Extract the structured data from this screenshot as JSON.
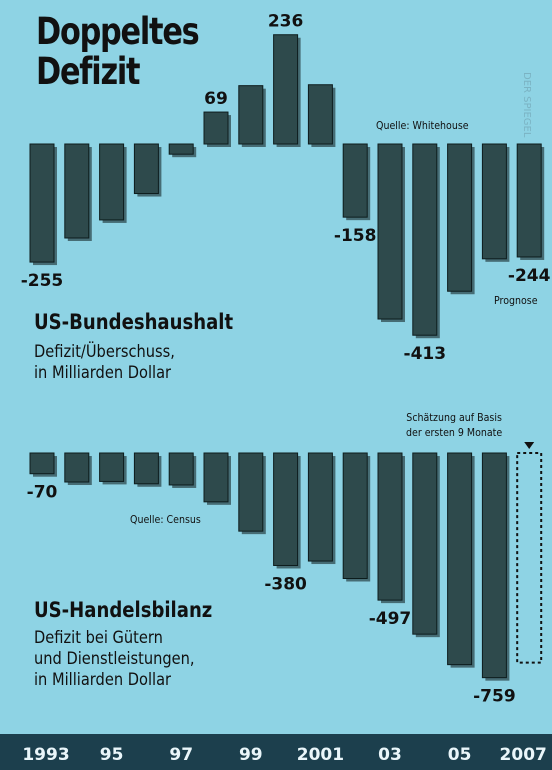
{
  "title": "Doppeltes Defizit",
  "credit": "DER SPIEGEL",
  "colors": {
    "background": "#8ed3e4",
    "bar": "#2e4a4c",
    "axis_band": "#1c3f4d"
  },
  "chart_data": [
    {
      "type": "bar",
      "title": "US-Bundeshaushalt",
      "subtitle": "Defizit/Überschuss,\nin Milliarden Dollar",
      "source": "Quelle: Whitehouse",
      "categories": [
        "1993",
        "1994",
        "1995",
        "1996",
        "1997",
        "1998",
        "1999",
        "2000",
        "2001",
        "2002",
        "2003",
        "2004",
        "2005",
        "2006",
        "2007"
      ],
      "values": [
        -255,
        -203,
        -164,
        -107,
        -22,
        69,
        126,
        236,
        128,
        -158,
        -378,
        -413,
        -318,
        -248,
        -244
      ],
      "data_labels": [
        {
          "index": 0,
          "text": "-255"
        },
        {
          "index": 5,
          "text": "69"
        },
        {
          "index": 7,
          "text": "236"
        },
        {
          "index": 9,
          "text": "-158"
        },
        {
          "index": 11,
          "text": "-413"
        },
        {
          "index": 14,
          "text": "-244"
        }
      ],
      "annotation": "Prognose"
    },
    {
      "type": "bar",
      "title": "US-Handelsbilanz",
      "subtitle": "Defizit bei Gütern\nund Dienstleistungen,\nin Milliarden Dollar",
      "source": "Quelle: Census",
      "categories": [
        "1993",
        "1994",
        "1995",
        "1996",
        "1997",
        "1998",
        "1999",
        "2000",
        "2001",
        "2002",
        "2003",
        "2004",
        "2005",
        "2006",
        "2007"
      ],
      "values": [
        -70,
        -98,
        -96,
        -104,
        -108,
        -165,
        -264,
        -380,
        -365,
        -424,
        -497,
        -612,
        -715,
        -759,
        -708
      ],
      "data_labels": [
        {
          "index": 0,
          "text": "-70"
        },
        {
          "index": 7,
          "text": "-380"
        },
        {
          "index": 10,
          "text": "-497"
        },
        {
          "index": 13,
          "text": "-759"
        }
      ],
      "estimate_index": 14,
      "annotation": "Schätzung auf Basis\nder ersten 9 Monate"
    }
  ],
  "x_axis_labels": [
    "1993",
    "95",
    "97",
    "99",
    "2001",
    "03",
    "05",
    "2007"
  ]
}
